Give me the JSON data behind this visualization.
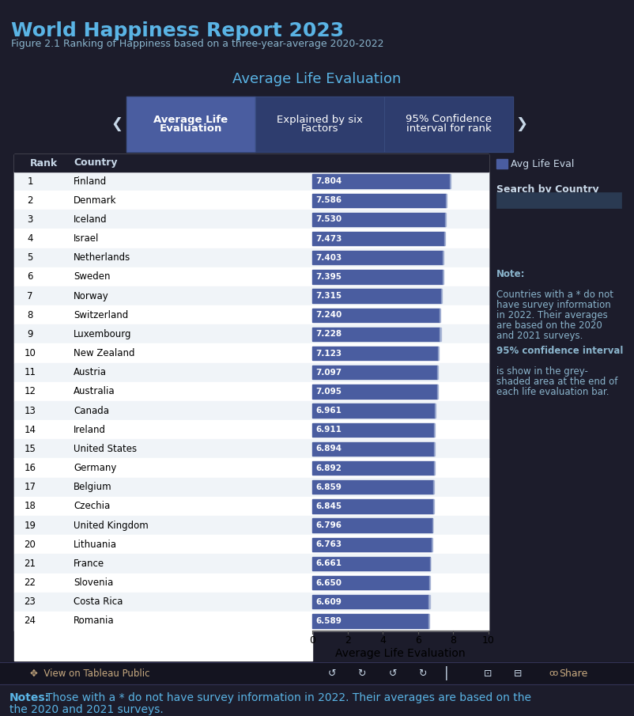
{
  "title": "World Happiness Report 2023",
  "subtitle": "Figure 2.1 Ranking of Happiness based on a three-year-average 2020-2022",
  "chart_title": "Average Life Evaluation",
  "xlabel": "Average Life Evaluation",
  "bg_color": "#1c1c2b",
  "chart_bg": "#ffffff",
  "bar_color": "#4a5da0",
  "ci_color": "#9baad0",
  "text_light": "#c8d8e8",
  "text_dark": "#000000",
  "title_color": "#5ab4e5",
  "tab_active_bg": "#4a5da0",
  "tab_inactive_bg": "#2e3d6e",
  "tab_border": "#3a4e80",
  "footer_bg": "#111120",
  "footer_text_color": "#5ab4e5",
  "note_color": "#8ab4cc",
  "toolbar_color": "#c8aa80",
  "row_alt_color": "#f0f4f8",
  "row_even_color": "#ffffff",
  "header_row_color": "#1c1c2b",
  "header_text_color": "#c8d8e8",
  "countries": [
    "Finland",
    "Denmark",
    "Iceland",
    "Israel",
    "Netherlands",
    "Sweden",
    "Norway",
    "Switzerland",
    "Luxembourg",
    "New Zealand",
    "Austria",
    "Australia",
    "Canada",
    "Ireland",
    "United States",
    "Germany",
    "Belgium",
    "Czechia",
    "United Kingdom",
    "Lithuania",
    "France",
    "Slovenia",
    "Costa Rica",
    "Romania"
  ],
  "ranks": [
    1,
    2,
    3,
    4,
    5,
    6,
    7,
    8,
    9,
    10,
    11,
    12,
    13,
    14,
    15,
    16,
    17,
    18,
    19,
    20,
    21,
    22,
    23,
    24
  ],
  "values": [
    7.804,
    7.586,
    7.53,
    7.473,
    7.403,
    7.395,
    7.315,
    7.24,
    7.228,
    7.123,
    7.097,
    7.095,
    6.961,
    6.911,
    6.894,
    6.892,
    6.859,
    6.845,
    6.796,
    6.763,
    6.661,
    6.65,
    6.609,
    6.589
  ],
  "ci_widths": [
    0.04,
    0.04,
    0.05,
    0.05,
    0.04,
    0.04,
    0.04,
    0.04,
    0.06,
    0.05,
    0.04,
    0.05,
    0.04,
    0.05,
    0.04,
    0.04,
    0.04,
    0.04,
    0.04,
    0.05,
    0.04,
    0.05,
    0.06,
    0.05
  ],
  "xlim": [
    0,
    10
  ],
  "xticks": [
    0,
    2,
    4,
    6,
    8,
    10
  ],
  "legend_label": "Avg Life Eval",
  "search_label": "Search by Country",
  "tab1": "Average Life\nEvaluation",
  "tab2": "Explained by six\nFactors",
  "tab3": "95% Confidence\ninterval for rank",
  "note1_bold": "Note:",
  "note1_text": "\nCountries with a * do not\nhave survey information\nin 2022. Their averages\nare based on the 2020\nand 2021 surveys.",
  "note2_bold": "95% confidence interval",
  "note2_text": "\nis show in the grey-\nshaded area at the end of\neach life evaluation bar.",
  "footer_bold": "Notes:",
  "footer_text": " Those with a * do not have survey information in 2022. Their averages are based on the\nthe 2020 and 2021 surveys."
}
